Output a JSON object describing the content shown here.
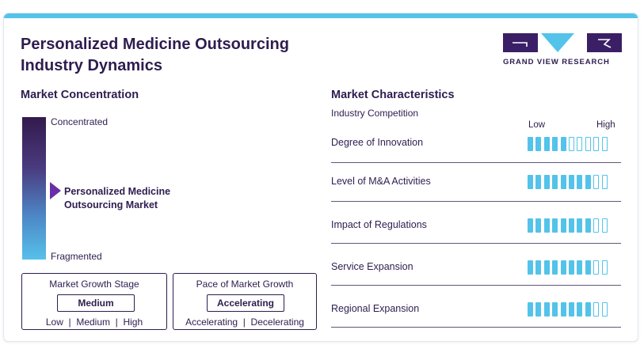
{
  "header": {
    "title_line1": "Personalized Medicine Outsourcing",
    "title_line2": "Industry Dynamics"
  },
  "logo": {
    "text": "GRAND VIEW RESEARCH",
    "colors": {
      "dark": "#3b1f66",
      "accent": "#54c3ea"
    }
  },
  "market_concentration": {
    "heading": "Market Concentration",
    "top_label": "Concentrated",
    "bottom_label": "Fragmented",
    "marker_line1": "Personalized Medicine",
    "marker_line2": "Outsourcing Market"
  },
  "growth_stage": {
    "title": "Market Growth Stage",
    "value": "Medium",
    "options": "Low  |  Medium  |  High"
  },
  "growth_pace": {
    "title": "Pace of Market Growth",
    "value": "Accelerating",
    "options": "Accelerating  |  Decelerating"
  },
  "market_characteristics": {
    "heading": "Market Characteristics",
    "subheading": "Industry Competition",
    "scale_low": "Low",
    "scale_high": "High",
    "max_level": 10,
    "rows": [
      {
        "label": "Degree of Innovation",
        "level": 5
      },
      {
        "label": "Level of M&A Activities",
        "level": 8
      },
      {
        "label": "Impact of Regulations",
        "level": 8
      },
      {
        "label": "Service Expansion",
        "level": 8
      },
      {
        "label": "Regional Expansion",
        "level": 8
      }
    ]
  },
  "colors": {
    "text": "#2e1d4f",
    "accent": "#54c3ea",
    "marker": "#6a2ea6"
  }
}
